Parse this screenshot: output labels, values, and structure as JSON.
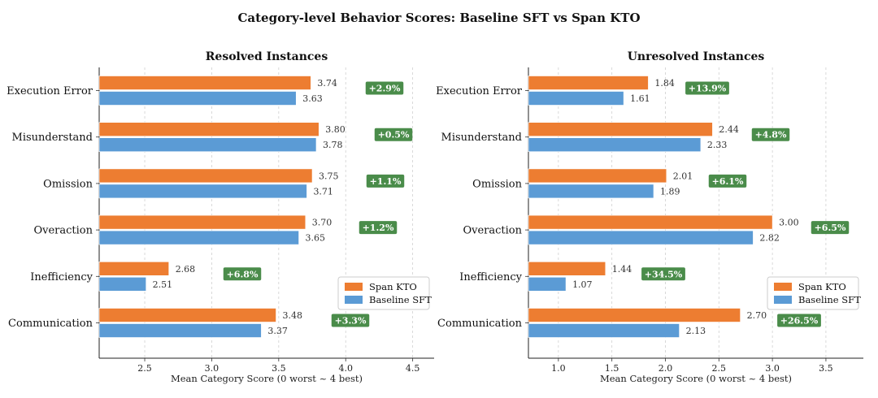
{
  "title": "Category-level Behavior Scores: Baseline SFT vs Span KTO",
  "colors": {
    "span_kto": "#ED7D31",
    "baseline_sft": "#5B9BD5",
    "delta_badge": "#4A8C4A"
  },
  "chart_data": [
    {
      "type": "bar",
      "orientation": "horizontal",
      "title": "Resolved Instances",
      "xlabel": "Mean Category Score (0 worst ~ 4 best)",
      "ylabel": "",
      "xlim": [
        2.16,
        4.66
      ],
      "xticks": [
        "2.5",
        "3.0",
        "3.5",
        "4.0",
        "4.5"
      ],
      "grid": "vertical-dashed",
      "legend": "lower-right",
      "categories": [
        "Execution Error",
        "Misunderstand",
        "Omission",
        "Overaction",
        "Inefficiency",
        "Communication"
      ],
      "series": [
        {
          "name": "Span KTO",
          "values": [
            3.74,
            3.8,
            3.75,
            3.7,
            2.68,
            3.48
          ],
          "labels": [
            "3.74",
            "3.80",
            "3.75",
            "3.70",
            "2.68",
            "3.48"
          ]
        },
        {
          "name": "Baseline SFT",
          "values": [
            3.63,
            3.78,
            3.71,
            3.65,
            2.51,
            3.37
          ],
          "labels": [
            "3.63",
            "3.78",
            "3.71",
            "3.65",
            "2.51",
            "3.37"
          ]
        }
      ],
      "annotations": [
        "+2.9%",
        "+0.5%",
        "+1.1%",
        "+1.2%",
        "+6.8%",
        "+3.3%"
      ]
    },
    {
      "type": "bar",
      "orientation": "horizontal",
      "title": "Unresolved Instances",
      "xlabel": "Mean Category Score (0 worst ~ 4 best)",
      "ylabel": "",
      "xlim": [
        0.72,
        3.85
      ],
      "xticks": [
        "1.0",
        "1.5",
        "2.0",
        "2.5",
        "3.0",
        "3.5"
      ],
      "grid": "vertical-dashed",
      "legend": "lower-right",
      "categories": [
        "Execution Error",
        "Misunderstand",
        "Omission",
        "Overaction",
        "Inefficiency",
        "Communication"
      ],
      "series": [
        {
          "name": "Span KTO",
          "values": [
            1.84,
            2.44,
            2.01,
            3.0,
            1.44,
            2.7
          ],
          "labels": [
            "1.84",
            "2.44",
            "2.01",
            "3.00",
            "1.44",
            "2.70"
          ]
        },
        {
          "name": "Baseline SFT",
          "values": [
            1.61,
            2.33,
            1.89,
            2.82,
            1.07,
            2.13
          ],
          "labels": [
            "1.61",
            "2.33",
            "1.89",
            "2.82",
            "1.07",
            "2.13"
          ]
        }
      ],
      "annotations": [
        "+13.9%",
        "+4.8%",
        "+6.1%",
        "+6.5%",
        "+34.5%",
        "+26.5%"
      ]
    }
  ]
}
